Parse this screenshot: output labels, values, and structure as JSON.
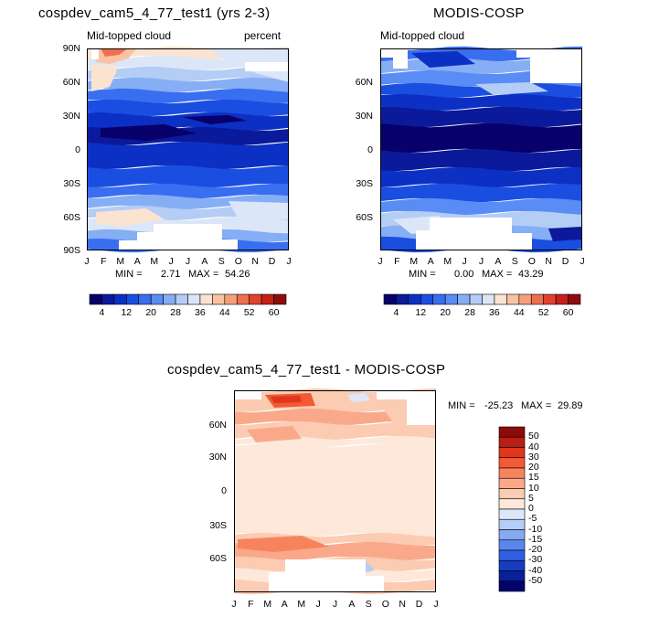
{
  "chart_data": [
    {
      "type": "heatmap",
      "title": "cospdev_cam5_4_77_test1 (yrs 2-3)",
      "subtitle_left": "Mid-topped cloud",
      "subtitle_right": "percent",
      "x_ticks": [
        "J",
        "F",
        "M",
        "A",
        "M",
        "J",
        "J",
        "A",
        "S",
        "O",
        "N",
        "D",
        "J"
      ],
      "y_ticks": [
        "90N",
        "60N",
        "30N",
        "0",
        "30S",
        "60S",
        "90S"
      ],
      "y_range": [
        -90,
        90
      ],
      "min_label": "MIN =",
      "min_value": "2.71",
      "max_label": "MAX =",
      "max_value": "54.26",
      "colorbar_ticks": [
        "4",
        "12",
        "20",
        "28",
        "36",
        "44",
        "52",
        "60"
      ]
    },
    {
      "type": "heatmap",
      "title": "MODIS-COSP",
      "subtitle_left": "Mid-topped cloud",
      "x_ticks": [
        "J",
        "F",
        "M",
        "A",
        "M",
        "J",
        "J",
        "A",
        "S",
        "O",
        "N",
        "D",
        "J"
      ],
      "y_ticks": [
        "60N",
        "30N",
        "0",
        "30S",
        "60S"
      ],
      "y_range": [
        -90,
        90
      ],
      "min_label": "MIN =",
      "min_value": "0.00",
      "max_label": "MAX =",
      "max_value": "43.29",
      "colorbar_ticks": [
        "4",
        "12",
        "20",
        "28",
        "36",
        "44",
        "52",
        "60"
      ]
    },
    {
      "type": "heatmap",
      "title": "cospdev_cam5_4_77_test1 - MODIS-COSP",
      "x_ticks": [
        "J",
        "F",
        "M",
        "A",
        "M",
        "J",
        "J",
        "A",
        "S",
        "O",
        "N",
        "D",
        "J"
      ],
      "y_ticks": [
        "60N",
        "30N",
        "0",
        "30S",
        "60S"
      ],
      "y_range": [
        -90,
        90
      ],
      "min_label": "MIN =",
      "min_value": "-25.23",
      "max_label": "MAX =",
      "max_value": "29.89",
      "colorbar_ticks": [
        "50",
        "40",
        "30",
        "20",
        "15",
        "10",
        "5",
        "0",
        "-5",
        "-10",
        "-15",
        "-20",
        "-30",
        "-40",
        "-50"
      ]
    }
  ],
  "colors": {
    "seq": [
      "#08006b",
      "#0a1a9a",
      "#0c30c4",
      "#1a4ee0",
      "#3a6ef0",
      "#5a8cf5",
      "#86aef5",
      "#b4cdf5",
      "#dbe6f8",
      "#fbe3d2",
      "#f9c3a3",
      "#f59f7a",
      "#ee6f4e",
      "#e0432d",
      "#c6201a",
      "#8f0d0d"
    ],
    "div": [
      "#8c0a0a",
      "#b81e12",
      "#e0361c",
      "#f25a33",
      "#f7835d",
      "#f9a98a",
      "#fbcbb2",
      "#fde8da",
      "#dce8fa",
      "#b6cdf6",
      "#86a9f3",
      "#5a86ec",
      "#2f5fe0",
      "#153dc0",
      "#08209a",
      "#03036b"
    ]
  }
}
